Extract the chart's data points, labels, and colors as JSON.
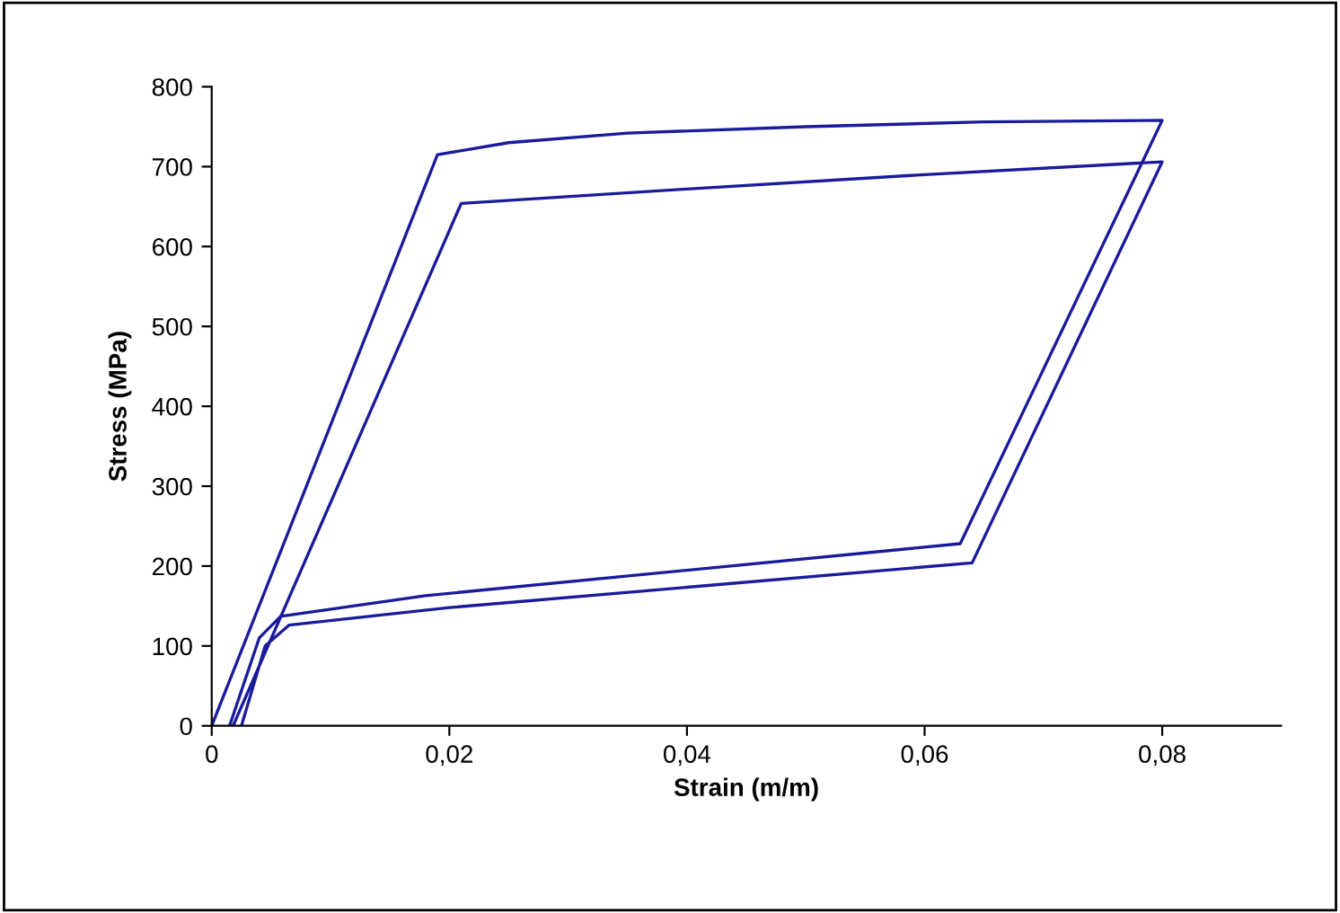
{
  "chart_data": {
    "type": "line",
    "xlabel": "Strain (m/m)",
    "ylabel": "Stress (MPa)",
    "series": [
      {
        "color": "#1a1a9c",
        "x": [
          0,
          0.019,
          0.025,
          0.035,
          0.05,
          0.065,
          0.08,
          0.063,
          0.018,
          0.0058,
          0.004,
          0.0015
        ],
        "values": [
          0,
          715,
          730,
          742,
          750,
          756,
          758,
          228,
          163,
          137,
          110,
          0
        ]
      },
      {
        "color": "#1a1a9c",
        "x": [
          0.0018,
          0.021,
          0.04,
          0.06,
          0.08,
          0.064,
          0.02,
          0.0065,
          0.0045,
          0.0025
        ],
        "values": [
          0,
          654,
          672,
          690,
          706,
          204,
          148,
          126,
          100,
          0
        ]
      }
    ],
    "xlim": [
      0,
      0.09
    ],
    "ylim": [
      0,
      800
    ],
    "xticks": [
      0,
      {
        "value": 0.02,
        "label": "0,02"
      },
      {
        "value": 0.04,
        "label": "0,04"
      },
      {
        "value": 0.06,
        "label": "0,06"
      },
      {
        "value": 0.08,
        "label": "0,08"
      }
    ],
    "yticks": [
      0,
      100,
      200,
      300,
      400,
      500,
      600,
      700,
      800
    ],
    "grid": false,
    "marker": "none",
    "line_style": "solid"
  }
}
